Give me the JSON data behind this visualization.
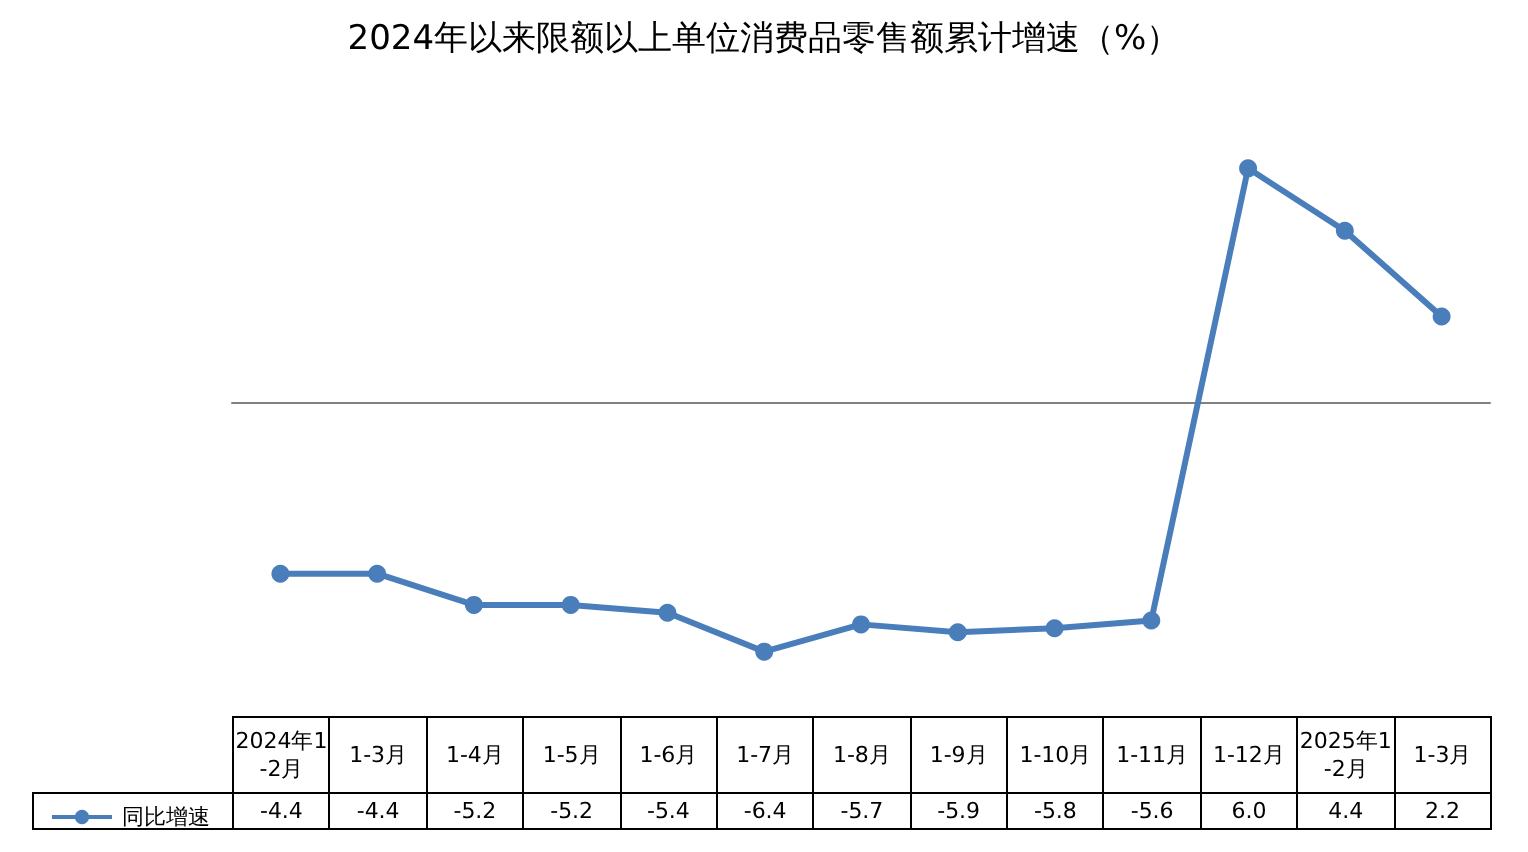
{
  "chart_data": {
    "type": "line",
    "title": "2024年以来限额以上单位消费品零售额累计增速（%）",
    "categories": [
      "2024年1-2月",
      "1-3月",
      "1-4月",
      "1-5月",
      "1-6月",
      "1-7月",
      "1-8月",
      "1-9月",
      "1-10月",
      "1-11月",
      "1-12月",
      "2025年1-2月",
      "1-3月"
    ],
    "series": [
      {
        "name": "同比增速",
        "color": "#4a7ebb",
        "values": [
          -4.4,
          -4.4,
          -5.2,
          -5.2,
          -5.4,
          -6.4,
          -5.7,
          -5.9,
          -5.8,
          -5.6,
          6.0,
          4.4,
          2.2
        ],
        "value_labels": [
          "-4.4",
          "-4.4",
          "-5.2",
          "-5.2",
          "-5.4",
          "-6.4",
          "-5.7",
          "-5.9",
          "-5.8",
          "-5.6",
          "6.0",
          "4.4",
          "2.2"
        ]
      }
    ],
    "marker": "circle",
    "legend": "bottom left",
    "grid": false
  }
}
